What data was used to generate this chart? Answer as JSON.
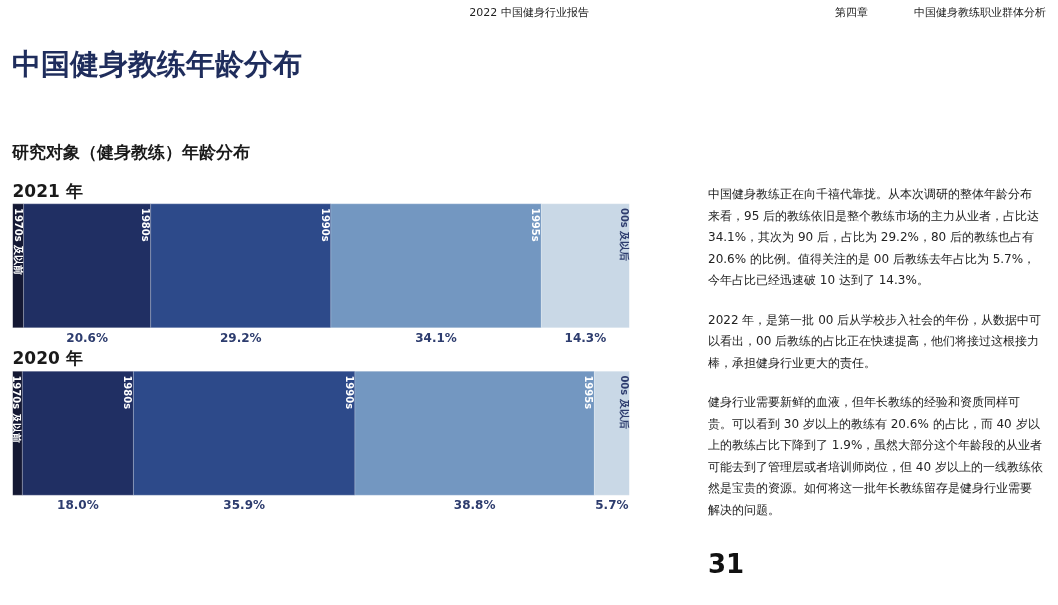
{
  "chart_data": {
    "type": "bar",
    "orientation": "horizontal",
    "stacked": true,
    "title": "中国健身教练年龄分布",
    "subtitle": "研究对象（健身教练）年龄分布",
    "categories": [
      "2021 年",
      "2020 年"
    ],
    "xlim": [
      0,
      100
    ],
    "series": [
      {
        "name": "1970s 及以前",
        "color": "#141833",
        "values": [
          1.8,
          1.6
        ],
        "value_labels": [
          null,
          null
        ]
      },
      {
        "name": "1980s",
        "color": "#202f63",
        "values": [
          20.6,
          18.0
        ],
        "value_labels": [
          "20.6%",
          "18.0%"
        ]
      },
      {
        "name": "1990s",
        "color": "#2d4a8a",
        "values": [
          29.2,
          35.9
        ],
        "value_labels": [
          "29.2%",
          "35.9%"
        ]
      },
      {
        "name": "1995s",
        "color": "#7397c1",
        "values": [
          34.1,
          38.8
        ],
        "value_labels": [
          "34.1%",
          "38.8%"
        ]
      },
      {
        "name": "00s 及以后",
        "color": "#c9d8e6",
        "values": [
          14.3,
          5.7
        ],
        "value_labels": [
          "14.3%",
          "5.7%"
        ]
      }
    ],
    "annotations": [
      "2022 中国健身行业报告",
      "第四章",
      "中国健身教练职业群体分析",
      "中国健身教练正在向千禧代靠拢。从本次调研的整体年龄分布来看，95 后的教练依旧是整个教练市场的主力从业者，占比达 34.1%，其次为 90 后，占比为 29.2%，80 后的教练也占有 20.6% 的比例。值得关注的是 00 后教练去年占比为 5.7%，今年占比已经迅速破 10 达到了 14.3%。",
      "2022 年，是第一批 00 后从学校步入社会的年份，从数据中可以看出，00 后教练的占比正在快速提高，他们将接过这根接力棒，承担健身行业更大的责任。",
      "健身行业需要新鲜的血液，但年长教练的经验和资质同样可贵。可以看到 30 岁以上的教练有 20.6% 的占比，而 40 岁以上的教练占比下降到了 1.9%，虽然大部分这个年龄段的从业者可能去到了管理层或者培训师岗位，但 40 岁以上的一线教练依然是宝贵的资源。如何将这一批年长教练留存是健身行业需要解决的问题。",
      "31"
    ]
  }
}
